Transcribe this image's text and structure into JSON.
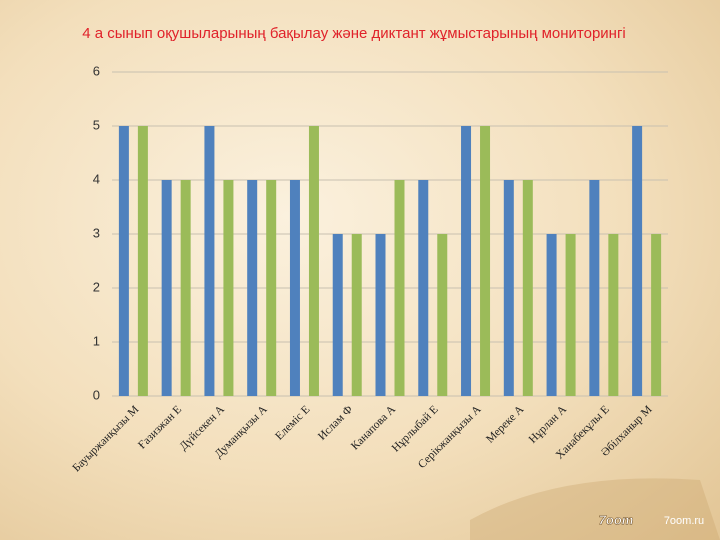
{
  "chart_data": {
    "type": "bar",
    "title": "4 а сынып оқушыларының бақылау және диктант жұмыстарының мониторингі",
    "categories": [
      "Бауыржанқызы М",
      "Ғазизжан Е",
      "Дүйсекен А",
      "Думанқызы А",
      "Елеміс Е",
      "Ислам Ф",
      "Канапова А",
      "Нұрлыбай Е",
      "Серікжанқызы А",
      "Мереке А",
      "Нұрлан А",
      "Ханабекұлы Е",
      "Әбілханыр М"
    ],
    "series": [
      {
        "color": "#4f81bd",
        "values": [
          5,
          4,
          5,
          4,
          4,
          3,
          3,
          4,
          5,
          4,
          3,
          4,
          5
        ]
      },
      {
        "color": "#9bbb59",
        "values": [
          5,
          4,
          4,
          4,
          5,
          3,
          4,
          3,
          5,
          4,
          3,
          3,
          3
        ]
      }
    ],
    "ylim": [
      0,
      6
    ],
    "yticks": [
      0,
      1,
      2,
      3,
      4,
      5,
      6
    ],
    "grid": true
  },
  "logo": "7oom",
  "watermark": "7oom.ru"
}
